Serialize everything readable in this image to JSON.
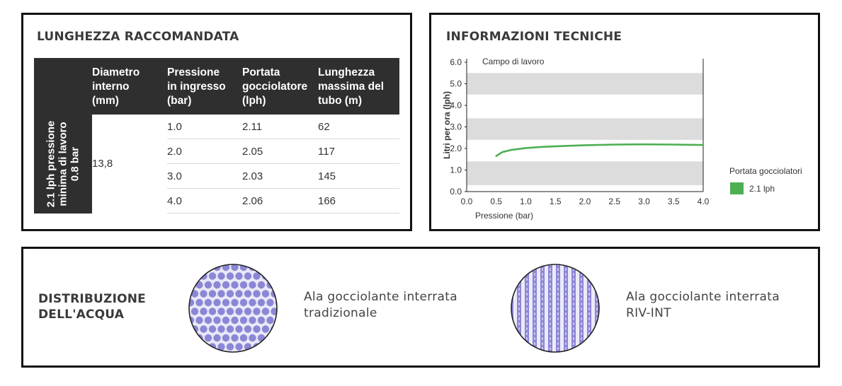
{
  "table_panel": {
    "title": "LUNGHEZZA RACCOMANDATA",
    "headers": [
      [
        "Diametro",
        "interno",
        "(mm)"
      ],
      [
        "Pressione",
        "in ingresso",
        "(bar)"
      ],
      [
        "Portata",
        "gocciolatore",
        "(lph)"
      ],
      [
        "Lunghezza",
        "massima del",
        "tubo (m)"
      ]
    ],
    "side_label": [
      "2.1 lph pressione",
      "minima di lavoro",
      "0.8 bar"
    ],
    "diameter": "13,8",
    "rows": [
      {
        "pressure": "1.0",
        "flow": "2.11",
        "length": "62"
      },
      {
        "pressure": "2.0",
        "flow": "2.05",
        "length": "117"
      },
      {
        "pressure": "3.0",
        "flow": "2.03",
        "length": "145"
      },
      {
        "pressure": "4.0",
        "flow": "2.06",
        "length": "166"
      }
    ]
  },
  "chart_panel": {
    "title": "INFORMAZIONI TECNICHE"
  },
  "chart_data": {
    "type": "line",
    "annotation": "Campo di lavoro",
    "xlabel": "Pressione (bar)",
    "ylabel": "Litri per ora (lph)",
    "xlim": [
      0.0,
      4.0
    ],
    "ylim": [
      0.0,
      6.0
    ],
    "xticks": [
      "0.0",
      "0.5",
      "1.0",
      "1.5",
      "2.0",
      "2.5",
      "3.0",
      "3.5",
      "4.0"
    ],
    "yticks": [
      "0.0",
      "1.0",
      "2.0",
      "3.0",
      "4.0",
      "5.0",
      "6.0"
    ],
    "bands": [
      [
        0.3,
        1.4
      ],
      [
        2.4,
        3.4
      ],
      [
        4.5,
        5.5
      ]
    ],
    "band_color": "#dcdcdc",
    "legend_title": "Portata gocciolatori",
    "legend_position": "right",
    "series": [
      {
        "name": "2.1 lph",
        "color": "#4caf50",
        "x": [
          0.5,
          0.6,
          0.75,
          1.0,
          1.25,
          1.5,
          2.0,
          2.5,
          3.0,
          3.5,
          4.0
        ],
        "y": [
          1.65,
          1.83,
          1.93,
          2.02,
          2.07,
          2.1,
          2.15,
          2.18,
          2.19,
          2.18,
          2.16
        ]
      }
    ]
  },
  "distribution_panel": {
    "title": [
      "DISTRIBUZIONE",
      "DELL'ACQUA"
    ],
    "items": [
      {
        "label": [
          "Ala gocciolante interrata",
          "tradizionale"
        ],
        "icon": "dotted-distribution-icon"
      },
      {
        "label": [
          "Ala gocciolante interrata",
          "RIV-INT"
        ],
        "icon": "wavy-distribution-icon"
      }
    ],
    "dot_color": "#8b86d6"
  }
}
